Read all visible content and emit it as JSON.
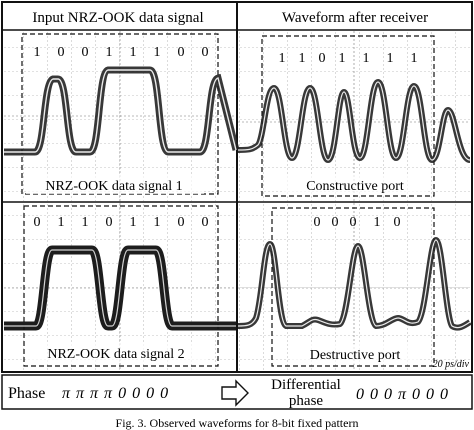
{
  "headers": {
    "left": "Input NRZ-OOK data signal",
    "right": "Waveform after receiver"
  },
  "panels": {
    "top_left": {
      "bits": [
        "1",
        "0",
        "0",
        "1",
        "1",
        "1",
        "0",
        "0"
      ],
      "label": "NRZ-OOK data signal 1"
    },
    "top_right": {
      "bits": [
        "1",
        "1",
        "0",
        "1",
        "1",
        "1",
        "1"
      ],
      "label": "Constructive port"
    },
    "bottom_left": {
      "bits": [
        "0",
        "1",
        "1",
        "0",
        "1",
        "1",
        "0",
        "0"
      ],
      "label": "NRZ-OOK data signal 2"
    },
    "bottom_right": {
      "bits": [
        "0",
        "0",
        "0",
        "1",
        "0"
      ],
      "label": "Destructive port",
      "scale": "20 ps/div"
    }
  },
  "phase_row": {
    "phase_label": "Phase",
    "phase_values": "π π π π 0 0 0 0",
    "differential_label_line1": "Differential",
    "differential_label_line2": "phase",
    "differential_values": "0 0 0 π 0 0 0"
  },
  "caption": "Fig. 3. Observed waveforms for 8-bit fixed pattern"
}
